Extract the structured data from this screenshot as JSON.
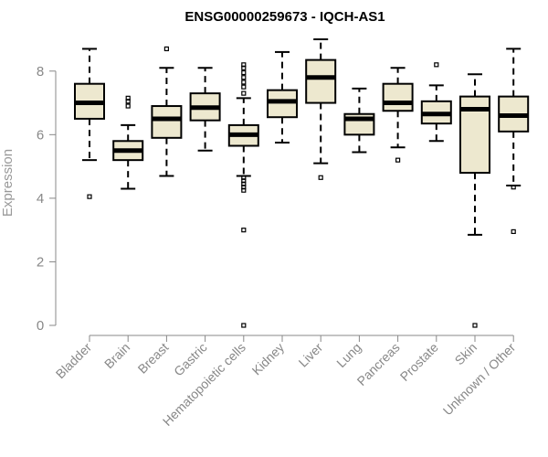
{
  "chart_data": {
    "type": "boxplot",
    "title": "ENSG00000259673 - IQCH-AS1",
    "xlabel": "",
    "ylabel": "Expression",
    "ylim": [
      0,
      9
    ],
    "yticks": [
      0,
      2,
      4,
      6,
      8
    ],
    "colors": {
      "box_fill": "#ede8cf",
      "box_stroke": "#000000",
      "axis": "#888888"
    },
    "categories": [
      "Bladder",
      "Brain",
      "Breast",
      "Gastric",
      "Hematopoietic cells",
      "Kidney",
      "Liver",
      "Lung",
      "Pancreas",
      "Prostate",
      "Skin",
      "Unknown / Other"
    ],
    "boxes": [
      {
        "category": "Bladder",
        "whisker_low": 5.2,
        "q1": 6.5,
        "median": 7.0,
        "q3": 7.6,
        "whisker_high": 8.7,
        "outliers": [
          4.05
        ]
      },
      {
        "category": "Brain",
        "whisker_low": 4.3,
        "q1": 5.2,
        "median": 5.5,
        "q3": 5.8,
        "whisker_high": 6.3,
        "outliers": [
          6.9,
          7.05,
          7.15
        ]
      },
      {
        "category": "Breast",
        "whisker_low": 4.7,
        "q1": 5.9,
        "median": 6.5,
        "q3": 6.9,
        "whisker_high": 8.1,
        "outliers": [
          8.7
        ]
      },
      {
        "category": "Gastric",
        "whisker_low": 5.5,
        "q1": 6.45,
        "median": 6.85,
        "q3": 7.3,
        "whisker_high": 8.1,
        "outliers": []
      },
      {
        "category": "Hematopoietic cells",
        "whisker_low": 4.7,
        "q1": 5.65,
        "median": 6.0,
        "q3": 6.3,
        "whisker_high": 7.15,
        "outliers": [
          0.0,
          3.0,
          4.25,
          4.35,
          4.45,
          4.55,
          4.65,
          7.3,
          7.5,
          7.65,
          7.8,
          7.95,
          8.1,
          8.2
        ]
      },
      {
        "category": "Kidney",
        "whisker_low": 5.75,
        "q1": 6.55,
        "median": 7.05,
        "q3": 7.4,
        "whisker_high": 8.6,
        "outliers": []
      },
      {
        "category": "Liver",
        "whisker_low": 5.1,
        "q1": 7.0,
        "median": 7.8,
        "q3": 8.35,
        "whisker_high": 9.0,
        "outliers": [
          4.65
        ]
      },
      {
        "category": "Lung",
        "whisker_low": 5.45,
        "q1": 6.0,
        "median": 6.5,
        "q3": 6.65,
        "whisker_high": 7.45,
        "outliers": []
      },
      {
        "category": "Pancreas",
        "whisker_low": 5.6,
        "q1": 6.75,
        "median": 7.0,
        "q3": 7.6,
        "whisker_high": 8.1,
        "outliers": [
          5.2
        ]
      },
      {
        "category": "Prostate",
        "whisker_low": 5.8,
        "q1": 6.35,
        "median": 6.65,
        "q3": 7.05,
        "whisker_high": 7.55,
        "outliers": [
          8.2
        ]
      },
      {
        "category": "Skin",
        "whisker_low": 2.85,
        "q1": 4.8,
        "median": 6.8,
        "q3": 7.2,
        "whisker_high": 7.9,
        "outliers": [
          0.0
        ]
      },
      {
        "category": "Unknown / Other",
        "whisker_low": 4.4,
        "q1": 6.1,
        "median": 6.6,
        "q3": 7.2,
        "whisker_high": 8.7,
        "outliers": [
          2.95,
          4.35
        ]
      }
    ]
  }
}
